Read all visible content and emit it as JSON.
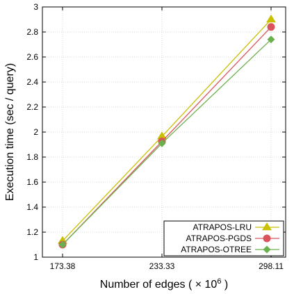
{
  "chart_data": {
    "type": "line",
    "x_categories": [
      "173.38",
      "233.33",
      "298.11"
    ],
    "x_values": [
      173.38,
      233.33,
      298.11
    ],
    "xlabel_prefix": "Number of edges ( × 10",
    "xlabel_exponent": "6",
    "xlabel_suffix": " )",
    "ylabel": "Execution time (sec / query)",
    "ylim": [
      1,
      3
    ],
    "yticks": [
      "1",
      "1.2",
      "1.4",
      "1.6",
      "1.8",
      "2",
      "2.2",
      "2.4",
      "2.6",
      "2.8",
      "3"
    ],
    "grid": true,
    "legend_position": "bottom-right",
    "series": [
      {
        "name": "ATRAPOS-LRU",
        "values": [
          1.13,
          1.965,
          2.9
        ],
        "color": "#c8c000",
        "marker": "triangle"
      },
      {
        "name": "ATRAPOS-PGDS",
        "values": [
          1.1,
          1.925,
          2.84
        ],
        "color": "#d9545c",
        "marker": "circle"
      },
      {
        "name": "ATRAPOS-OTREE",
        "values": [
          1.1,
          1.91,
          2.74
        ],
        "color": "#6ab04c",
        "marker": "diamond"
      }
    ]
  }
}
